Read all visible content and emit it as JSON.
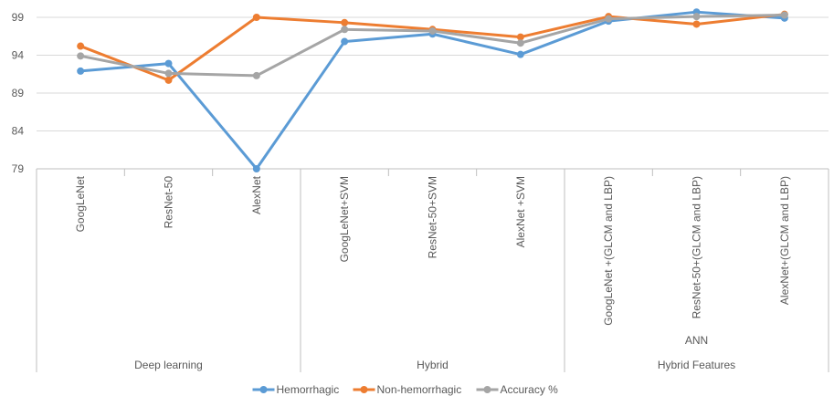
{
  "chart_data": {
    "type": "line",
    "categories": [
      "GoogLeNet",
      "ResNet-50",
      "AlexNet",
      "GoogLeNet+SVM",
      "ResNet-50+SVM",
      "AlexNet +SVM",
      "GoogLeNet +(GLCM and LBP)",
      "ResNet-50+(GLCM and LBP)",
      "AlexNet+(GLCM and LBP)"
    ],
    "groups": [
      {
        "label": "Deep learning",
        "sublabel": "",
        "count": 3
      },
      {
        "label": "Hybrid",
        "sublabel": "",
        "count": 3
      },
      {
        "label": "Hybrid Features",
        "sublabel": "ANN",
        "count": 3
      }
    ],
    "series": [
      {
        "name": "Hemorrhagic",
        "color": "#5B9BD5",
        "values": [
          91.9,
          92.9,
          79.0,
          95.8,
          96.8,
          94.1,
          98.5,
          99.7,
          98.9
        ]
      },
      {
        "name": "Non-hemorrhagic",
        "color": "#ED7D31",
        "values": [
          95.2,
          90.7,
          99.0,
          98.3,
          97.4,
          96.4,
          99.1,
          98.1,
          99.4
        ]
      },
      {
        "name": "Accuracy %",
        "color": "#A5A5A5",
        "values": [
          93.9,
          91.6,
          91.3,
          97.4,
          97.2,
          95.6,
          98.8,
          99.1,
          99.3
        ]
      }
    ],
    "y_ticks": [
      "79",
      "84",
      "89",
      "94",
      "99"
    ],
    "ylim": [
      79,
      99
    ],
    "grid": true,
    "legend": "bottom"
  }
}
